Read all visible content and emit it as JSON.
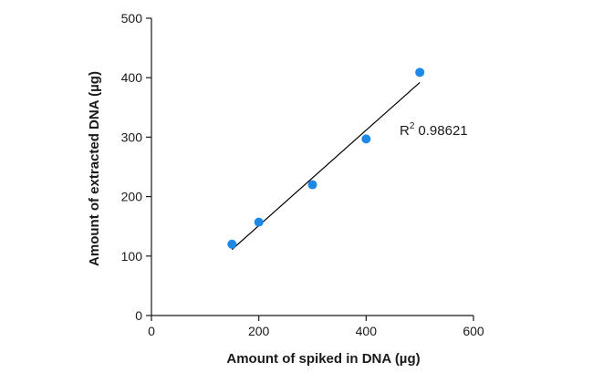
{
  "chart_data": {
    "type": "scatter",
    "xlabel": "Amount of spiked in DNA (µg)",
    "ylabel": "Amount of extracted DNA (µg)",
    "xlim": [
      0,
      600
    ],
    "ylim": [
      0,
      500
    ],
    "xticks": [
      0,
      200,
      400,
      600
    ],
    "yticks": [
      0,
      100,
      200,
      300,
      400,
      500
    ],
    "grid": false,
    "series": [
      {
        "x": [
          150,
          200,
          300,
          400,
          500
        ],
        "y": [
          120,
          157,
          220,
          297,
          409
        ],
        "color": "#1e88e5"
      }
    ],
    "fit_line": {
      "x": [
        150,
        500
      ],
      "y": [
        111,
        392
      ],
      "color": "#000000"
    },
    "annotation": {
      "prefix": "R",
      "superscript": "2",
      "value": "0.98621"
    }
  }
}
